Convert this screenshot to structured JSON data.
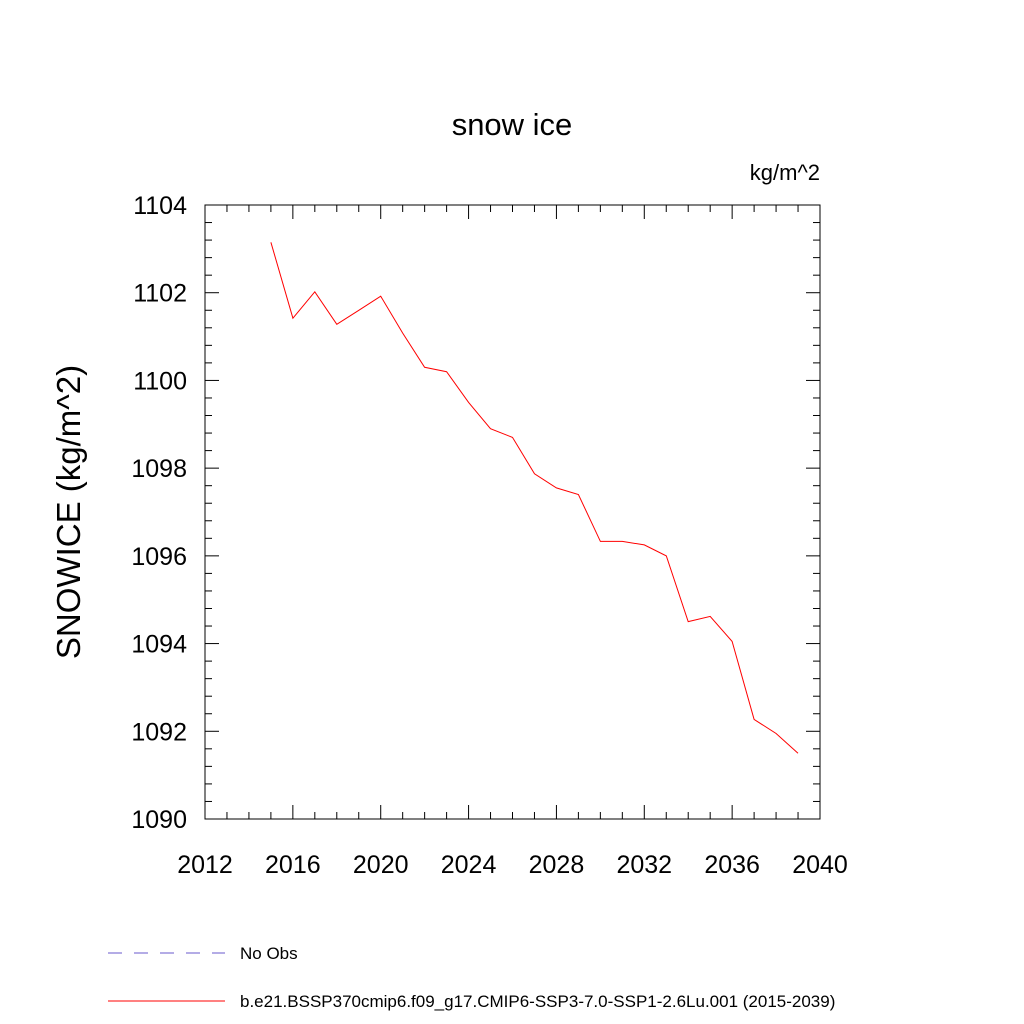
{
  "chart_data": {
    "type": "line",
    "title": "snow ice",
    "units_label": "kg/m^2",
    "ylabel": "SNOWICE  (kg/m^2)",
    "xlabel": "",
    "xlim": [
      2012,
      2040
    ],
    "ylim": [
      1090,
      1104
    ],
    "x_ticks": [
      2012,
      2016,
      2020,
      2024,
      2028,
      2032,
      2036,
      2040
    ],
    "y_ticks": [
      1090,
      1092,
      1094,
      1096,
      1098,
      1100,
      1102,
      1104
    ],
    "x_tick_labels": [
      "2012",
      "2016",
      "2020",
      "2024",
      "2028",
      "2032",
      "2036",
      "2040"
    ],
    "y_tick_labels": [
      "1090",
      "1092",
      "1094",
      "1096",
      "1098",
      "1100",
      "1102",
      "1104"
    ],
    "series": [
      {
        "name": "b.e21.BSSP370cmip6.f09_g17.CMIP6-SSP3-7.0-SSP1-2.6Lu.001 (2015-2039)",
        "color": "#ff0000",
        "x": [
          2015,
          2016,
          2017,
          2018,
          2019,
          2020,
          2021,
          2022,
          2023,
          2024,
          2025,
          2026,
          2027,
          2028,
          2029,
          2030,
          2031,
          2032,
          2033,
          2034,
          2035,
          2036,
          2037,
          2038,
          2039
        ],
        "y": [
          1103.15,
          1101.42,
          1102.02,
          1101.28,
          1101.6,
          1101.92,
          1101.08,
          1100.3,
          1100.2,
          1099.5,
          1098.9,
          1098.7,
          1097.87,
          1097.55,
          1097.4,
          1096.33,
          1096.33,
          1096.25,
          1096.0,
          1094.5,
          1094.62,
          1094.05,
          1092.27,
          1091.95,
          1091.5
        ]
      }
    ],
    "legend": [
      {
        "label": "No Obs",
        "color": "#6a5acd",
        "style": "dashed"
      },
      {
        "label": "b.e21.BSSP370cmip6.f09_g17.CMIP6-SSP3-7.0-SSP1-2.6Lu.001 (2015-2039)",
        "color": "#ff0000",
        "style": "solid"
      }
    ],
    "grid": false,
    "legend_position": "bottom-left"
  }
}
